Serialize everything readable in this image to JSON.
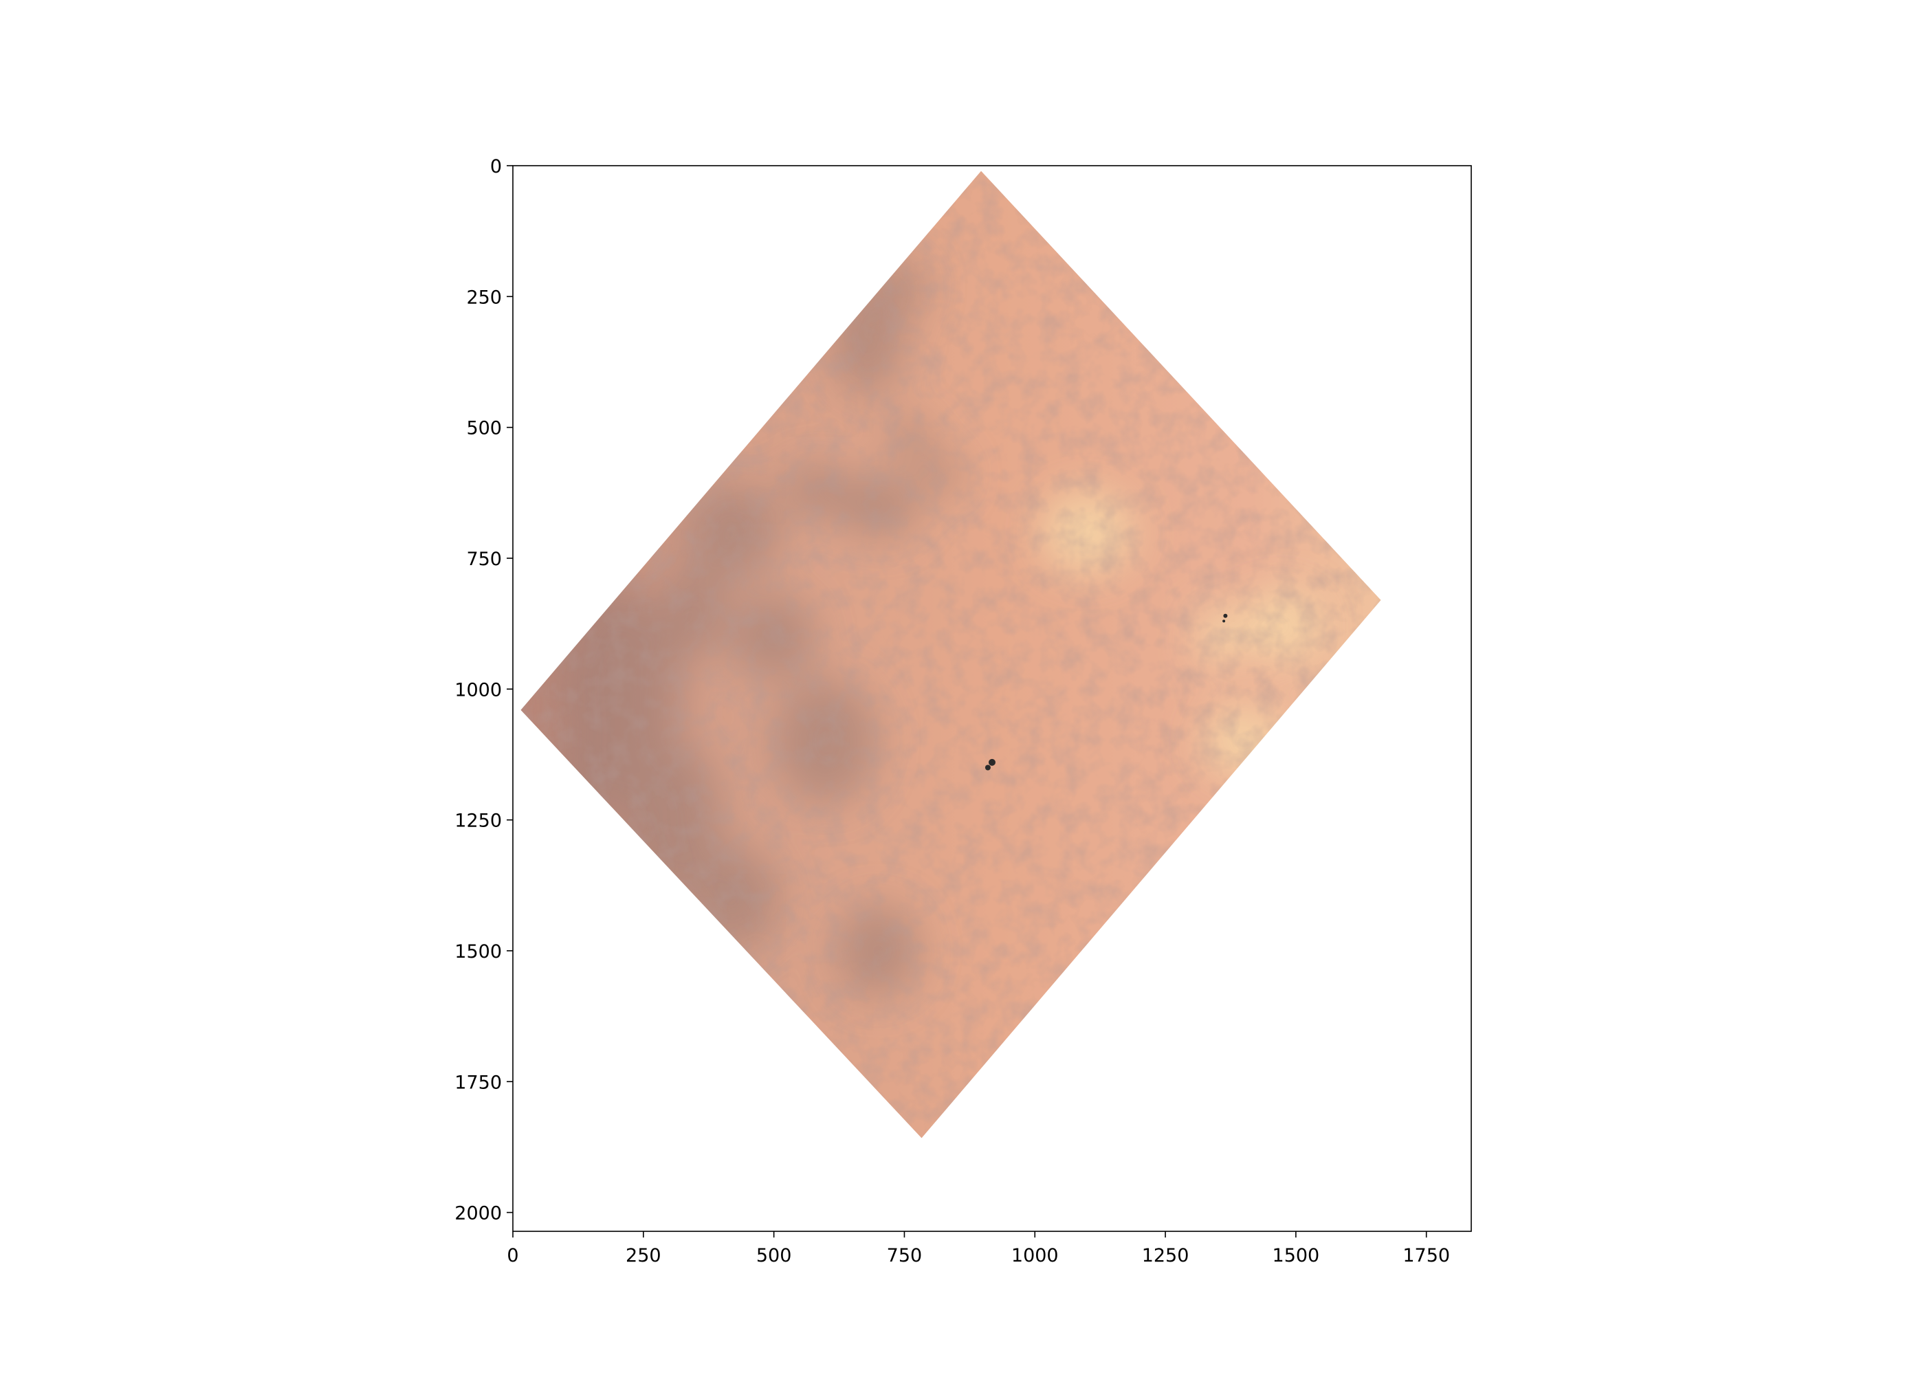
{
  "figure": {
    "type": "image",
    "background_color": "#ffffff",
    "image_colors": {
      "base": "#e8a88a",
      "dark_patches": "#9a7a73",
      "light_patches": "#f7d8a8",
      "specks": "#2a2a2a"
    }
  },
  "chart_data": {
    "type": "image",
    "title": "",
    "xlabel": "",
    "ylabel": "",
    "xlim": [
      0,
      1836
    ],
    "ylim": [
      2036,
      0
    ],
    "x_ticks": [
      0,
      250,
      500,
      750,
      1000,
      1250,
      1500,
      1750
    ],
    "y_ticks": [
      0,
      250,
      500,
      750,
      1000,
      1250,
      1500,
      1750,
      2000
    ],
    "x_tick_labels": [
      "0",
      "250",
      "500",
      "750",
      "1000",
      "1250",
      "1500",
      "1750"
    ],
    "y_tick_labels": [
      "0",
      "250",
      "500",
      "750",
      "1000",
      "1250",
      "1500",
      "1750",
      "2000"
    ],
    "image_corners": [
      {
        "x": 897,
        "y": 10
      },
      {
        "x": 1663,
        "y": 830
      },
      {
        "x": 783,
        "y": 1858
      },
      {
        "x": 15,
        "y": 1040
      }
    ],
    "grid": false,
    "legend": "none"
  }
}
